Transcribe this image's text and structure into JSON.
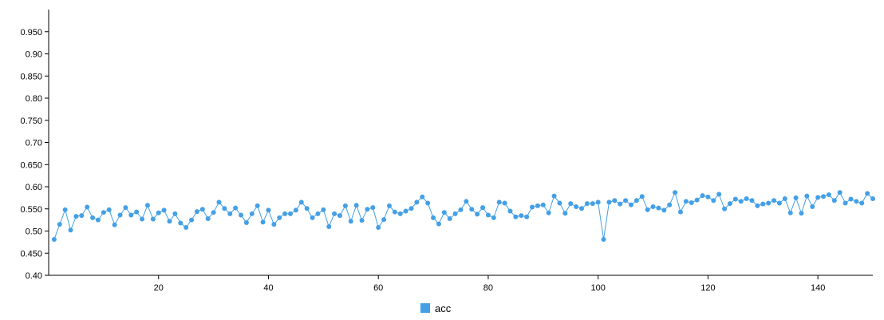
{
  "chart_data": {
    "type": "line",
    "title": "",
    "xlabel": "",
    "ylabel": "",
    "xlim": [
      0,
      150
    ],
    "ylim": [
      0.4,
      1.0
    ],
    "x_ticks": [
      20,
      40,
      60,
      80,
      100,
      120,
      140
    ],
    "y_ticks": [
      "0.40",
      "0.450",
      "0.50",
      "0.550",
      "0.60",
      "0.650",
      "0.70",
      "0.750",
      "0.80",
      "0.850",
      "0.90",
      "0.950"
    ],
    "grid": false,
    "legend_position": "bottom-center",
    "series": [
      {
        "name": "acc",
        "color": "#44a0e6",
        "x": [
          1,
          2,
          3,
          4,
          5,
          6,
          7,
          8,
          9,
          10,
          11,
          12,
          13,
          14,
          15,
          16,
          17,
          18,
          19,
          20,
          21,
          22,
          23,
          24,
          25,
          26,
          27,
          28,
          29,
          30,
          31,
          32,
          33,
          34,
          35,
          36,
          37,
          38,
          39,
          40,
          41,
          42,
          43,
          44,
          45,
          46,
          47,
          48,
          49,
          50,
          51,
          52,
          53,
          54,
          55,
          56,
          57,
          58,
          59,
          60,
          61,
          62,
          63,
          64,
          65,
          66,
          67,
          68,
          69,
          70,
          71,
          72,
          73,
          74,
          75,
          76,
          77,
          78,
          79,
          80,
          81,
          82,
          83,
          84,
          85,
          86,
          87,
          88,
          89,
          90,
          91,
          92,
          93,
          94,
          95,
          96,
          97,
          98,
          99,
          100,
          101,
          102,
          103,
          104,
          105,
          106,
          107,
          108,
          109,
          110,
          111,
          112,
          113,
          114,
          115,
          116,
          117,
          118,
          119,
          120,
          121,
          122,
          123,
          124,
          125,
          126,
          127,
          128,
          129,
          130,
          131,
          132,
          133,
          134,
          135,
          136,
          137,
          138,
          139,
          140,
          141,
          142,
          143,
          144,
          145,
          146,
          147,
          148,
          149,
          150
        ],
        "values": [
          0.481,
          0.515,
          0.548,
          0.502,
          0.533,
          0.535,
          0.554,
          0.53,
          0.525,
          0.542,
          0.548,
          0.514,
          0.536,
          0.553,
          0.536,
          0.543,
          0.527,
          0.558,
          0.527,
          0.541,
          0.547,
          0.522,
          0.539,
          0.518,
          0.508,
          0.525,
          0.544,
          0.549,
          0.528,
          0.542,
          0.565,
          0.551,
          0.539,
          0.552,
          0.536,
          0.519,
          0.539,
          0.557,
          0.52,
          0.547,
          0.515,
          0.53,
          0.539,
          0.539,
          0.547,
          0.565,
          0.551,
          0.53,
          0.539,
          0.548,
          0.51,
          0.539,
          0.535,
          0.557,
          0.522,
          0.558,
          0.524,
          0.549,
          0.553,
          0.508,
          0.526,
          0.557,
          0.543,
          0.539,
          0.545,
          0.551,
          0.565,
          0.577,
          0.563,
          0.53,
          0.516,
          0.542,
          0.528,
          0.539,
          0.548,
          0.567,
          0.549,
          0.538,
          0.553,
          0.536,
          0.53,
          0.565,
          0.563,
          0.545,
          0.532,
          0.535,
          0.532,
          0.554,
          0.557,
          0.559,
          0.541,
          0.579,
          0.563,
          0.54,
          0.562,
          0.555,
          0.551,
          0.562,
          0.562,
          0.565,
          0.481,
          0.565,
          0.569,
          0.561,
          0.569,
          0.559,
          0.569,
          0.578,
          0.548,
          0.555,
          0.552,
          0.547,
          0.559,
          0.587,
          0.543,
          0.567,
          0.564,
          0.57,
          0.58,
          0.577,
          0.569,
          0.583,
          0.55,
          0.562,
          0.572,
          0.567,
          0.573,
          0.569,
          0.557,
          0.561,
          0.563,
          0.569,
          0.563,
          0.573,
          0.541,
          0.575,
          0.54,
          0.579,
          0.555,
          0.576,
          0.578,
          0.582,
          0.569,
          0.587,
          0.563,
          0.572,
          0.567,
          0.563,
          0.585,
          0.573
        ]
      }
    ]
  }
}
